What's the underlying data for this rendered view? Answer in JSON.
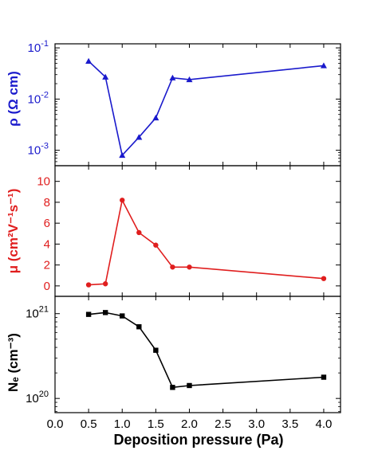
{
  "chart_data": [
    {
      "type": "line",
      "ylabel": "ρ (Ω cm)",
      "color": "#1a1acc",
      "marker": "triangle",
      "yscale": "log",
      "ylim": [
        0.0005,
        0.12
      ],
      "yticks": [
        {
          "value": 0.1,
          "base": "10",
          "exp": "-1"
        },
        {
          "value": 0.01,
          "base": "10",
          "exp": "-2"
        },
        {
          "value": 0.001,
          "base": "10",
          "exp": "-3"
        }
      ],
      "x": [
        0.5,
        0.75,
        1.0,
        1.25,
        1.5,
        1.75,
        2.0,
        4.0
      ],
      "values": [
        0.055,
        0.027,
        0.0008,
        0.0018,
        0.0043,
        0.026,
        0.024,
        0.045
      ]
    },
    {
      "type": "line",
      "ylabel": "μ (cm²V⁻¹s⁻¹)",
      "color": "#e01e1e",
      "marker": "circle",
      "yscale": "linear",
      "ylim": [
        -1,
        11.5
      ],
      "yticks": [
        {
          "value": 0,
          "label": "0"
        },
        {
          "value": 2,
          "label": "2"
        },
        {
          "value": 4,
          "label": "4"
        },
        {
          "value": 6,
          "label": "6"
        },
        {
          "value": 8,
          "label": "8"
        },
        {
          "value": 10,
          "label": "10"
        }
      ],
      "x": [
        0.5,
        0.75,
        1.0,
        1.25,
        1.5,
        1.75,
        2.0,
        4.0
      ],
      "values": [
        0.1,
        0.2,
        8.2,
        5.1,
        3.9,
        1.8,
        1.8,
        0.7
      ]
    },
    {
      "type": "line",
      "ylabel": "Nₑ (cm⁻³)",
      "color": "#000000",
      "marker": "square",
      "yscale": "log",
      "ylim": [
        6.8e+19,
        1.6e+21
      ],
      "yticks": [
        {
          "value": 1e+21,
          "base": "10",
          "exp": "21"
        },
        {
          "value": 1e+20,
          "base": "10",
          "exp": "20"
        }
      ],
      "x": [
        0.5,
        0.75,
        1.0,
        1.25,
        1.5,
        1.75,
        2.0,
        4.0
      ],
      "values": [
        9.8e+20,
        1.03e+21,
        9.4e+20,
        7e+20,
        3.7e+20,
        1.35e+20,
        1.42e+20,
        1.78e+20
      ]
    }
  ],
  "xaxis": {
    "label": "Deposition pressure (Pa)",
    "xlim": [
      0.0,
      4.25
    ],
    "ticks": [
      "0.0",
      "0.5",
      "1.0",
      "1.5",
      "2.0",
      "2.5",
      "3.0",
      "3.5",
      "4.0"
    ]
  }
}
